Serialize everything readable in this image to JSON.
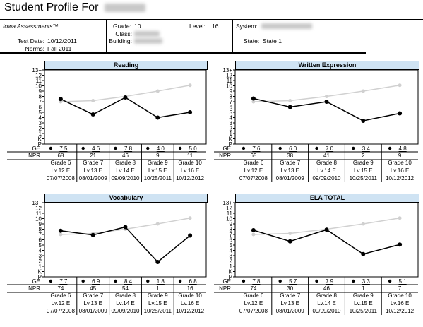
{
  "header": {
    "title": "Student Profile For",
    "assessment": "Iowa Assessments™",
    "test_date_label": "Test Date:",
    "test_date": "10/12/2011",
    "norms_label": "Norms:",
    "norms": "Fall 2011",
    "grade_label": "Grade:",
    "grade": "10",
    "level_label": "Level:",
    "level": "16",
    "class_label": "Class:",
    "building_label": "Building:",
    "system_label": "System:",
    "state_label": "State:",
    "state": "State 1"
  },
  "labels": {
    "ge": "GE",
    "npr": "NPR",
    "y_ticks": [
      "13+",
      "12",
      "11",
      "10",
      "9",
      "8",
      "7",
      "6",
      "5",
      "4",
      "3",
      "2",
      "1",
      "K",
      "P"
    ]
  },
  "columns": [
    {
      "grade": "Grade 6",
      "level": "Lv.12 E",
      "date": "07/07/2008"
    },
    {
      "grade": "Grade 7",
      "level": "Lv.13 E",
      "date": "08/01/2009"
    },
    {
      "grade": "Grade 8",
      "level": "Lv.14 E",
      "date": "09/09/2010"
    },
    {
      "grade": "Grade 9",
      "level": "Lv.15 E",
      "date": "10/25/2011"
    },
    {
      "grade": "Grade 10",
      "level": "Lv.16 E",
      "date": "10/12/2012"
    }
  ],
  "chart_data": [
    {
      "type": "line",
      "title": "Reading",
      "ylim": [
        -1,
        13
      ],
      "series": [
        {
          "values": [
            7.0,
            7.2,
            8.0,
            9.0,
            10.1
          ],
          "color": "#d0d0d0"
        },
        {
          "values": [
            7.5,
            4.6,
            7.8,
            4.0,
            5.0
          ],
          "color": "#000000"
        }
      ],
      "ge": [
        "7.5",
        "4.6",
        "7.8",
        "4.0",
        "5.0"
      ],
      "npr": [
        "68",
        "21",
        "46",
        "9",
        "11"
      ]
    },
    {
      "type": "line",
      "title": "Written Expression",
      "ylim": [
        -1,
        13
      ],
      "series": [
        {
          "values": [
            7.0,
            7.2,
            8.0,
            9.0,
            10.1
          ],
          "color": "#d0d0d0"
        },
        {
          "values": [
            7.6,
            6.0,
            7.0,
            3.4,
            4.8
          ],
          "color": "#000000"
        }
      ],
      "ge": [
        "7.6",
        "6.0",
        "7.0",
        "3.4",
        "4.8"
      ],
      "npr": [
        "65",
        "38",
        "41",
        "2",
        "9"
      ]
    },
    {
      "type": "line",
      "title": "Vocabulary",
      "ylim": [
        -1,
        13
      ],
      "series": [
        {
          "values": [
            7.0,
            7.2,
            8.0,
            9.0,
            10.1
          ],
          "color": "#d0d0d0"
        },
        {
          "values": [
            7.7,
            6.9,
            8.4,
            1.8,
            6.8
          ],
          "color": "#000000"
        }
      ],
      "ge": [
        "7.7",
        "6.9",
        "8.4",
        "1.8",
        "6.8"
      ],
      "npr": [
        "74",
        "45",
        "54",
        "1",
        "16"
      ]
    },
    {
      "type": "line",
      "title": "ELA TOTAL",
      "ylim": [
        -1,
        13
      ],
      "series": [
        {
          "values": [
            7.0,
            7.2,
            8.0,
            9.0,
            10.1
          ],
          "color": "#d0d0d0"
        },
        {
          "values": [
            7.8,
            5.7,
            7.9,
            3.3,
            5.1
          ],
          "color": "#000000"
        }
      ],
      "ge": [
        "7.8",
        "5.7",
        "7.9",
        "3.3",
        "5.1"
      ],
      "npr": [
        "74",
        "30",
        "46",
        "1",
        "7"
      ]
    }
  ]
}
